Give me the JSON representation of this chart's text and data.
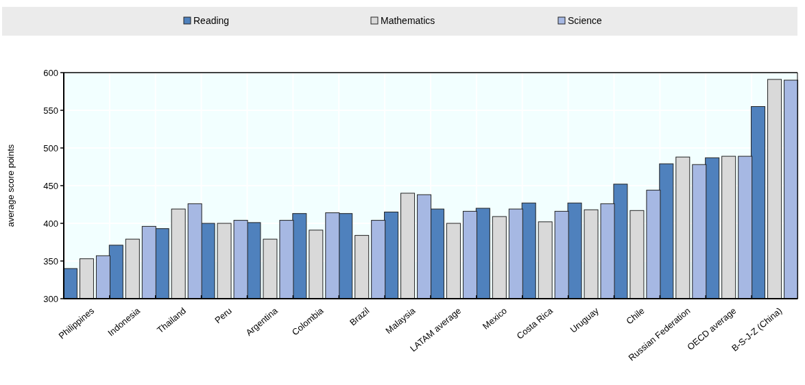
{
  "chart_data": {
    "type": "bar",
    "ylabel": "average score points",
    "categories": [
      "Philippines",
      "Indonesia",
      "Thailand",
      "Peru",
      "Argentina",
      "Colombia",
      "Brazil",
      "Malaysia",
      "LATAM average",
      "Mexico",
      "Costa Rica",
      "Uruguay",
      "Chile",
      "Russian Federation",
      "OECD average",
      "B-S-J-Z (China)"
    ],
    "series": [
      {
        "name": "Reading",
        "color": "#4f81bd",
        "values": [
          340,
          371,
          393,
          400,
          401,
          413,
          413,
          415,
          419,
          420,
          427,
          427,
          452,
          479,
          487,
          555
        ]
      },
      {
        "name": "Mathematics",
        "color": "#d9d9d9",
        "values": [
          353,
          379,
          419,
          400,
          379,
          391,
          384,
          440,
          400,
          409,
          402,
          418,
          417,
          488,
          489,
          591
        ]
      },
      {
        "name": "Science",
        "color": "#a6b8e3",
        "values": [
          357,
          396,
          426,
          404,
          404,
          414,
          404,
          438,
          416,
          419,
          416,
          426,
          444,
          478,
          489,
          590
        ]
      }
    ],
    "ylim": [
      300,
      600
    ],
    "yticks": [
      300,
      350,
      400,
      450,
      500,
      550,
      600
    ],
    "grid": true,
    "legend": "top"
  }
}
